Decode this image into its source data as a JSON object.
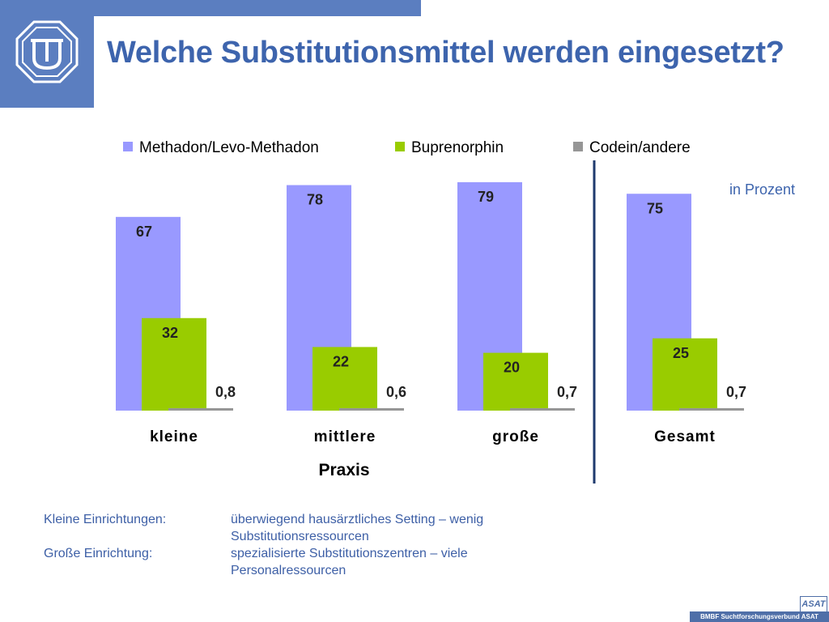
{
  "slide": {
    "title": "Welche Substitutionsmittel werden eingesetzt?",
    "header_color": "#5b7ec0",
    "title_color": "#3d64ad"
  },
  "chart_data": {
    "type": "bar",
    "categories": [
      "kleine",
      "mittlere",
      "große",
      "Gesamt"
    ],
    "group_label": "Praxis",
    "unit_note": "in Prozent",
    "legend_position": "top",
    "grid": false,
    "ylim": [
      0,
      100
    ],
    "series": [
      {
        "name": "Methadon/Levo-Methadon",
        "color": "#9999ff",
        "values": [
          67,
          78,
          79,
          75
        ],
        "labels": [
          "67",
          "78",
          "79",
          "75"
        ]
      },
      {
        "name": "Buprenorphin",
        "color": "#99cc00",
        "values": [
          32,
          22,
          20,
          25
        ],
        "labels": [
          "32",
          "22",
          "20",
          "25"
        ]
      },
      {
        "name": "Codein/andere",
        "color": "#969696",
        "values": [
          0.8,
          0.6,
          0.7,
          0.7
        ],
        "labels": [
          "0,8",
          "0,6",
          "0,7",
          "0,7"
        ]
      }
    ]
  },
  "notes": [
    {
      "label": "Kleine Einrichtungen:",
      "lines": [
        "überwiegend hausärztliches Setting – wenig",
        "Substitutionsressourcen"
      ]
    },
    {
      "label": "Große Einrichtung:",
      "lines": [
        "spezialisierte Substitutionszentren – viele",
        "Personalressourcen"
      ]
    }
  ],
  "footer": {
    "text": "BMBF Suchtforschungsverbund ASAT",
    "logo_text": "ASAT"
  }
}
